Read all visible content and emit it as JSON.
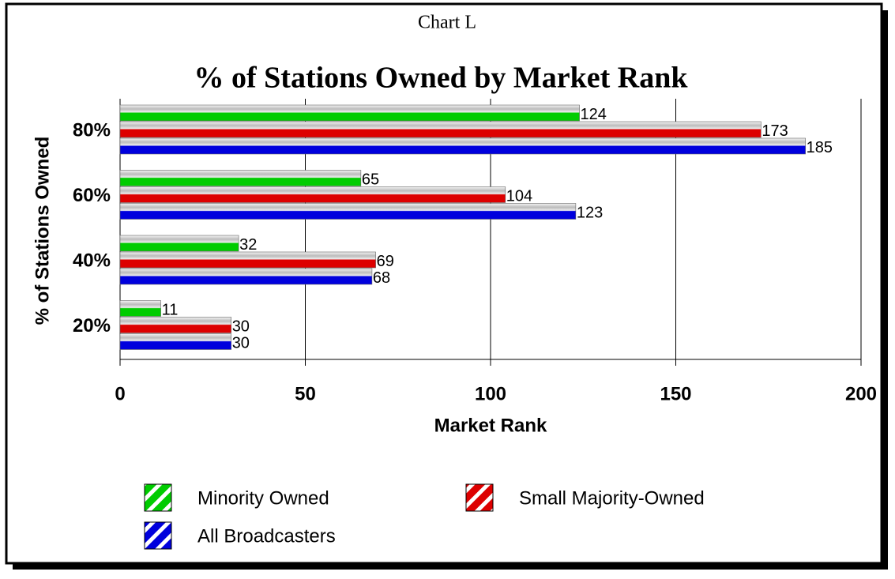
{
  "chart_data": {
    "type": "bar",
    "orientation": "horizontal",
    "header": "Chart L",
    "title": "% of Stations Owned by Market Rank",
    "categories": [
      "80%",
      "60%",
      "40%",
      "20%"
    ],
    "series": [
      {
        "name": "Minority Owned",
        "color": "#00cc00",
        "values": [
          124,
          65,
          32,
          11
        ]
      },
      {
        "name": "Small Majority-Owned",
        "color": "#dd0000",
        "values": [
          173,
          104,
          69,
          30
        ]
      },
      {
        "name": "All Broadcasters",
        "color": "#0000dd",
        "values": [
          185,
          123,
          68,
          30
        ]
      }
    ],
    "xlim": [
      0,
      200
    ],
    "xticks": [
      0,
      50,
      100,
      150,
      200
    ],
    "grid": true,
    "xlabel": "Market Rank",
    "ylabel": "% of Stations Owned",
    "legend": "bottom"
  }
}
